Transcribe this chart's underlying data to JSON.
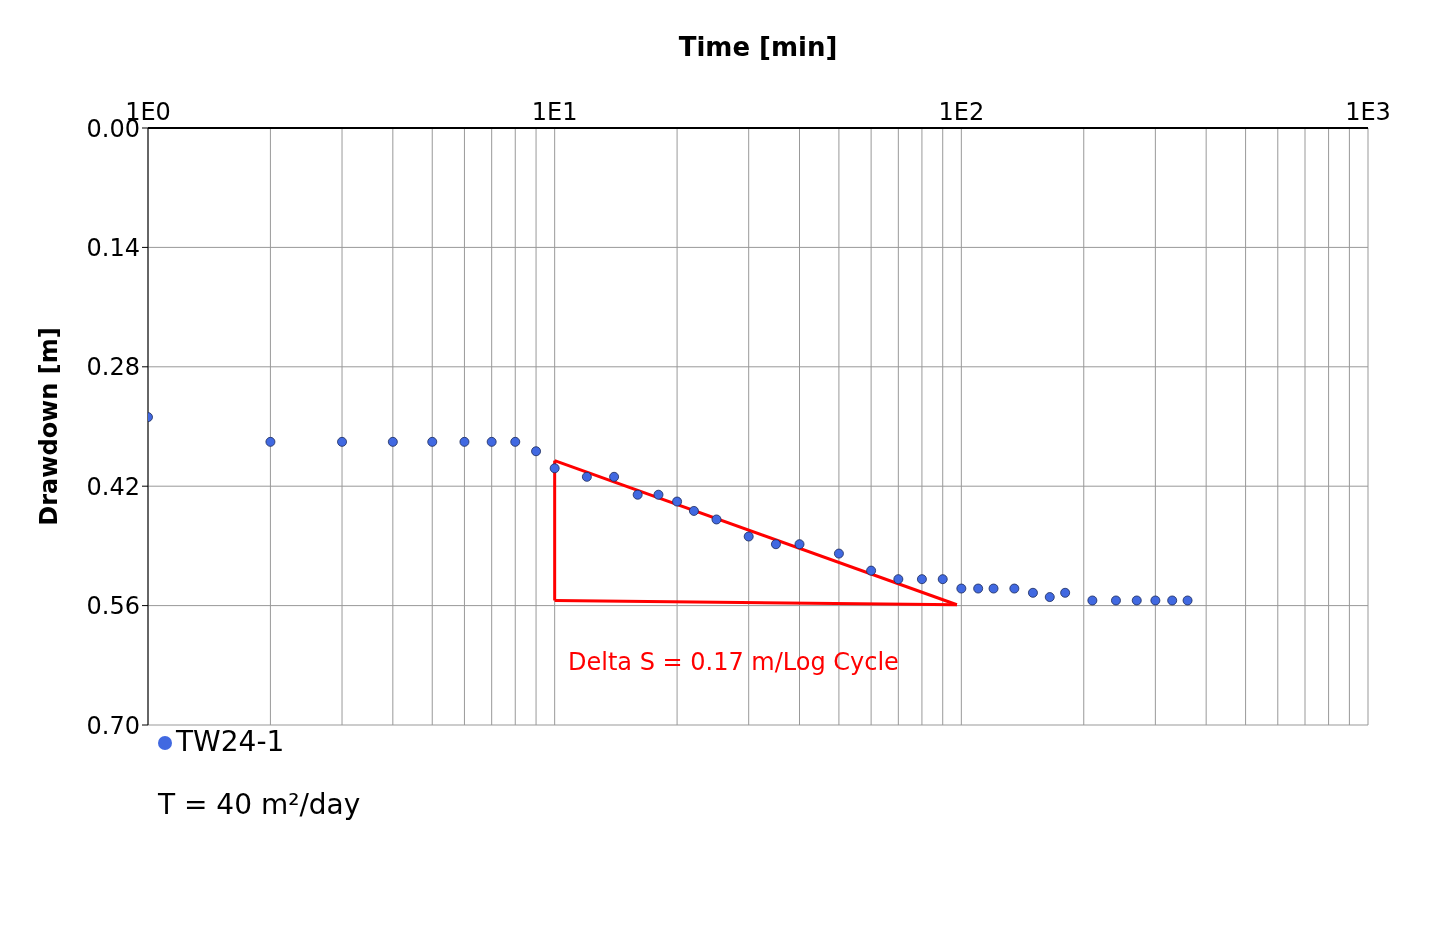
{
  "chart_data": {
    "type": "scatter",
    "xlabel": "Time [min]",
    "ylabel": "Drawdown [m]",
    "log": "x",
    "xlim": [
      1,
      1000
    ],
    "xticks": [
      {
        "value": 1,
        "label": "1E0"
      },
      {
        "value": 2,
        "label": null
      },
      {
        "value": 3,
        "label": null
      },
      {
        "value": 4,
        "label": null
      },
      {
        "value": 5,
        "label": null
      },
      {
        "value": 6,
        "label": null
      },
      {
        "value": 7,
        "label": null
      },
      {
        "value": 8,
        "label": null
      },
      {
        "value": 9,
        "label": null
      },
      {
        "value": 10,
        "label": "1E1"
      },
      {
        "value": 20,
        "label": null
      },
      {
        "value": 30,
        "label": null
      },
      {
        "value": 40,
        "label": null
      },
      {
        "value": 50,
        "label": null
      },
      {
        "value": 60,
        "label": null
      },
      {
        "value": 70,
        "label": null
      },
      {
        "value": 80,
        "label": null
      },
      {
        "value": 90,
        "label": null
      },
      {
        "value": 100,
        "label": "1E2"
      },
      {
        "value": 200,
        "label": null
      },
      {
        "value": 300,
        "label": null
      },
      {
        "value": 400,
        "label": null
      },
      {
        "value": 500,
        "label": null
      },
      {
        "value": 600,
        "label": null
      },
      {
        "value": 700,
        "label": null
      },
      {
        "value": 800,
        "label": null
      },
      {
        "value": 900,
        "label": null
      },
      {
        "value": 1000,
        "label": "1E3"
      }
    ],
    "ylim": [
      0.7,
      0
    ],
    "yticks": [
      {
        "value": 0,
        "label": "0.00"
      },
      {
        "value": 0.14,
        "label": "0.14"
      },
      {
        "value": 0.28,
        "label": "0.28"
      },
      {
        "value": 0.42,
        "label": "0.42"
      },
      {
        "value": 0.56,
        "label": "0.56"
      },
      {
        "value": 0.7,
        "label": "0.70"
      }
    ],
    "grid": true,
    "legend": "bottom left",
    "series": [
      {
        "name": "TW24-1",
        "marker": "circle",
        "color": "#4169e1",
        "x": [
          1,
          2,
          3,
          4,
          5,
          6,
          7,
          8,
          9,
          10,
          12,
          14,
          16,
          18,
          20,
          22,
          25,
          30,
          35,
          40,
          50,
          60,
          70,
          80,
          90,
          100,
          110,
          120,
          135,
          150,
          165,
          180,
          210,
          240,
          270,
          300,
          330,
          360
        ],
        "values": [
          0.339,
          0.368,
          0.368,
          0.368,
          0.368,
          0.368,
          0.368,
          0.368,
          0.379,
          0.399,
          0.409,
          0.409,
          0.43,
          0.43,
          0.438,
          0.449,
          0.459,
          0.479,
          0.488,
          0.488,
          0.499,
          0.519,
          0.529,
          0.529,
          0.529,
          0.54,
          0.54,
          0.54,
          0.54,
          0.545,
          0.55,
          0.545,
          0.554,
          0.554,
          0.554,
          0.554,
          0.554,
          0.554
        ]
      },
      {
        "type": "line",
        "marker": "none",
        "color": "#ff0000",
        "x": [
          10,
          97.5
        ],
        "values": [
          0.39,
          0.559
        ]
      },
      {
        "type": "line",
        "marker": "none",
        "color": "#ff0000",
        "x": [
          10,
          97.5
        ],
        "values": [
          0.554,
          0.559
        ]
      },
      {
        "type": "line",
        "marker": "none",
        "color": "#ff0000",
        "x": [
          10,
          10
        ],
        "values": [
          0.39,
          0.554
        ]
      }
    ],
    "annotations": [
      "Delta S = 0.17 m/Log Cycle",
      "T = 40 m²/day"
    ]
  }
}
